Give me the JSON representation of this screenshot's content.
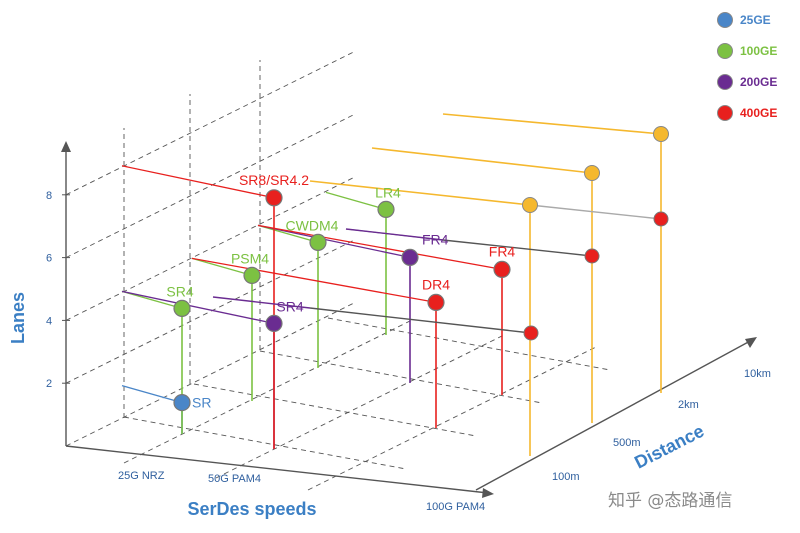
{
  "watermark": "知乎 @态路通信",
  "colors": {
    "25GE": "#4a86c8",
    "100GE": "#7cc142",
    "200GE": "#6a2c91",
    "400GE": "#e8201e",
    "distance_line": "#f5b82e",
    "connector": "#555555",
    "grid": "#555555",
    "axis_title": "#3b7fc4"
  },
  "chart_data": {
    "type": "scatter",
    "title": "",
    "xlabel": "SerDes speeds",
    "ylabel": "Lanes",
    "zlabel": "Distance",
    "x_categories": [
      "25G NRZ",
      "50G PAM4",
      "100G PAM4"
    ],
    "y_ticks": [
      "2",
      "4",
      "6",
      "8"
    ],
    "y_range": [
      0,
      9
    ],
    "z_categories": [
      "100m",
      "500m",
      "2km",
      "10km"
    ],
    "legend": [
      {
        "name": "25GE"
      },
      {
        "name": "100GE"
      },
      {
        "name": "200GE"
      },
      {
        "name": "400GE"
      }
    ],
    "points": [
      {
        "label": "SR",
        "series": "25GE",
        "serdes": 0,
        "lanes": 1,
        "distance": 0
      },
      {
        "label": "SR4",
        "series": "100GE",
        "serdes": 0,
        "lanes": 4,
        "distance": 0
      },
      {
        "label": "PSM4",
        "series": "100GE",
        "serdes": 0,
        "lanes": 4,
        "distance": 1
      },
      {
        "label": "CWDM4",
        "series": "100GE",
        "serdes": 0,
        "lanes": 4,
        "distance": 2
      },
      {
        "label": "LR4",
        "series": "100GE",
        "serdes": 0,
        "lanes": 4,
        "distance": 3
      },
      {
        "label": "SR4",
        "series": "200GE",
        "serdes": 1,
        "lanes": 4,
        "distance": 0
      },
      {
        "label": "FR4",
        "series": "200GE",
        "serdes": 1,
        "lanes": 4,
        "distance": 2
      },
      {
        "label": "SR8/SR4.2",
        "series": "400GE",
        "serdes": 1,
        "lanes": 8,
        "distance": 0
      },
      {
        "label": "DR4",
        "series": "400GE",
        "serdes": 2,
        "lanes": 4,
        "distance": 1
      },
      {
        "label": "FR4",
        "series": "400GE",
        "serdes": 2,
        "lanes": 4,
        "distance": 2
      }
    ]
  }
}
